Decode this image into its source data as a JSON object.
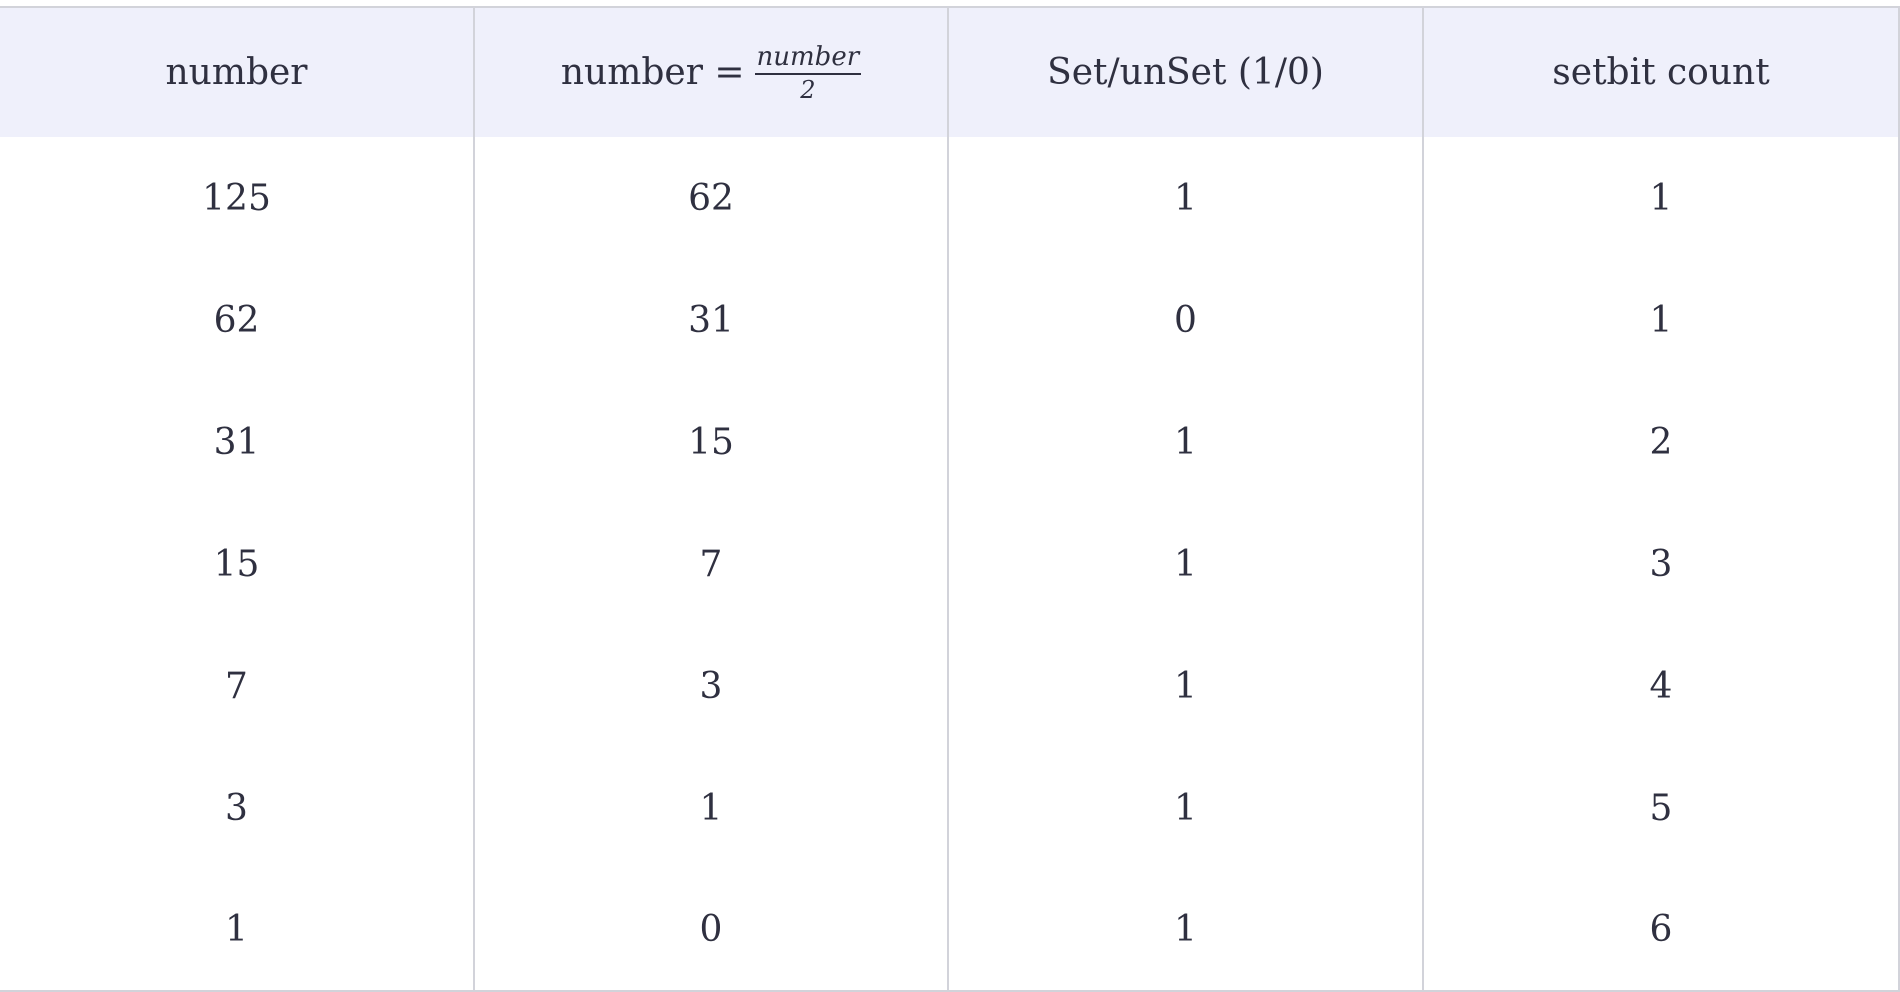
{
  "table": {
    "headers": {
      "col1": "number",
      "col2_prefix": "number =",
      "col2_frac_num": "number",
      "col2_frac_den": "2",
      "col3": "Set/unSet (1/0)",
      "col4": "setbit count"
    },
    "rows": [
      [
        "125",
        "62",
        "1",
        "1"
      ],
      [
        "62",
        "31",
        "0",
        "1"
      ],
      [
        "31",
        "15",
        "1",
        "2"
      ],
      [
        "15",
        "7",
        "1",
        "3"
      ],
      [
        "7",
        "3",
        "1",
        "4"
      ],
      [
        "3",
        "1",
        "1",
        "5"
      ],
      [
        "1",
        "0",
        "1",
        "6"
      ]
    ]
  }
}
